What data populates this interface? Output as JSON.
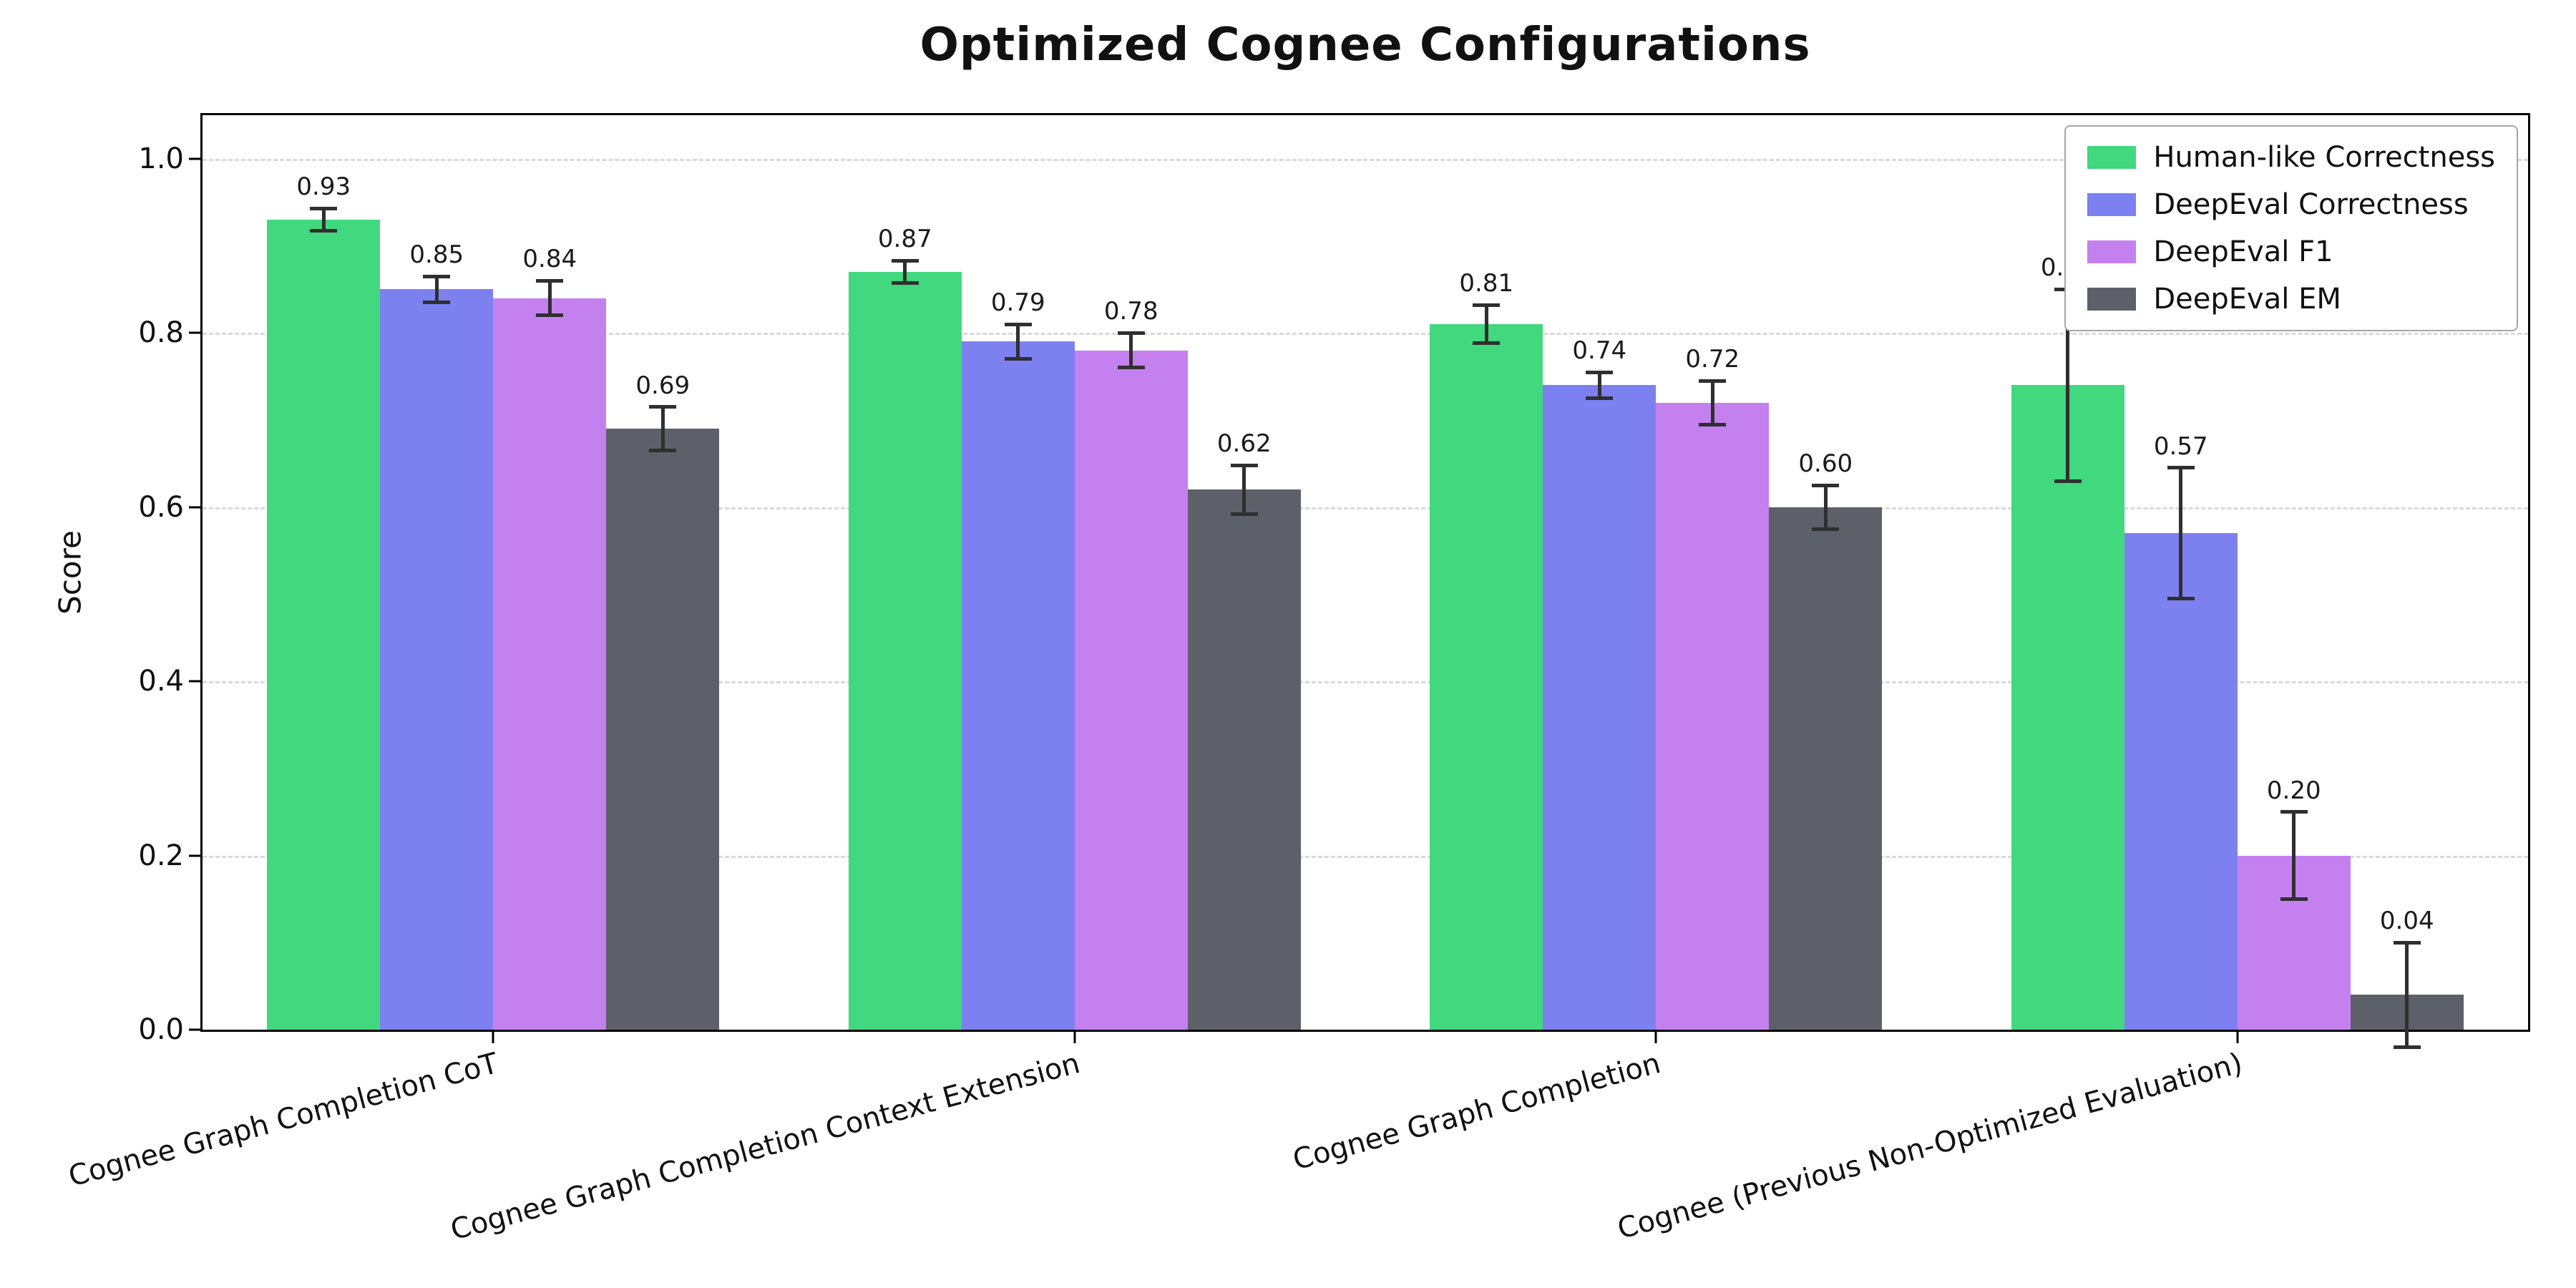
{
  "chart_data": {
    "type": "bar",
    "title": "Optimized Cognee Configurations",
    "xlabel": "",
    "ylabel": "Score",
    "ylim": [
      0,
      1.05
    ],
    "yticks": [
      0.0,
      0.2,
      0.4,
      0.6,
      0.8,
      1.0
    ],
    "grid": "horizontal-dashed",
    "legend_position": "upper-right",
    "error_bar_color": "#2f2f2f",
    "categories": [
      "Cognee Graph Completion CoT",
      "Cognee Graph Completion Context Extension",
      "Cognee Graph Completion",
      "Cognee (Previous Non-Optimized Evaluation)"
    ],
    "series": [
      {
        "name": "Human-like Correctness",
        "color": "#41d87e",
        "values": [
          0.93,
          0.87,
          0.81,
          0.74
        ],
        "errors": [
          0.013,
          0.013,
          0.022,
          0.11
        ]
      },
      {
        "name": "DeepEval Correctness",
        "color": "#7d81f0",
        "values": [
          0.85,
          0.79,
          0.74,
          0.57
        ],
        "errors": [
          0.015,
          0.02,
          0.015,
          0.075
        ]
      },
      {
        "name": "DeepEval F1",
        "color": "#c580f0",
        "values": [
          0.84,
          0.78,
          0.72,
          0.2
        ],
        "errors": [
          0.02,
          0.02,
          0.025,
          0.05
        ]
      },
      {
        "name": "DeepEval EM",
        "color": "#5d6068",
        "values": [
          0.69,
          0.62,
          0.6,
          0.04
        ],
        "errors": [
          0.025,
          0.028,
          0.025,
          0.06
        ]
      }
    ]
  }
}
